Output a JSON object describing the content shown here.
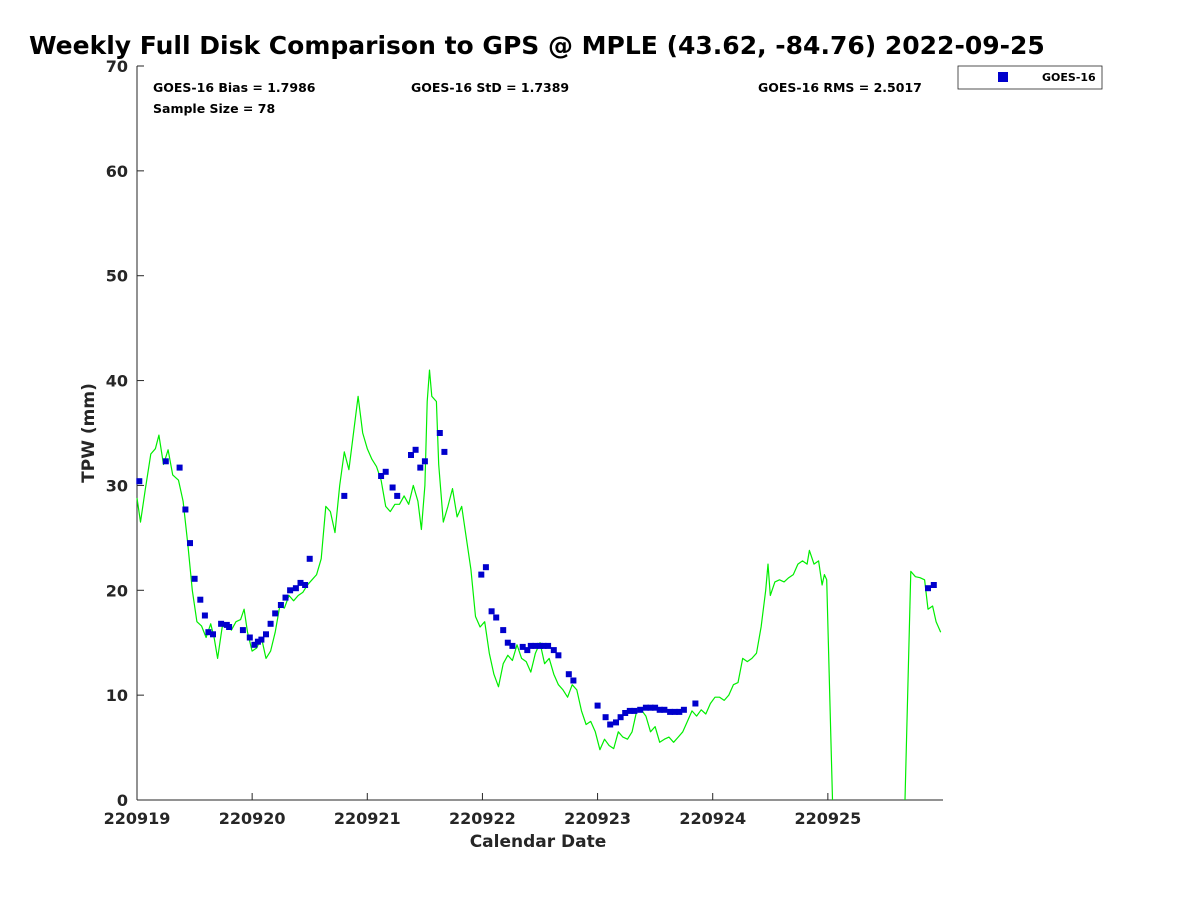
{
  "chart_data": {
    "type": "scatter",
    "title": "Weekly Full Disk Comparison to GPS @ MPLE (43.62, -84.76) 2022-09-25",
    "xlabel": "Calendar Date",
    "ylabel": "TPW (mm)",
    "xlim": [
      0,
      7
    ],
    "ylim": [
      0,
      70
    ],
    "x_unit": "days since 220919",
    "x_ticks": [
      {
        "x": 0,
        "label": "220919"
      },
      {
        "x": 1,
        "label": "220920"
      },
      {
        "x": 2,
        "label": "220921"
      },
      {
        "x": 3,
        "label": "220922"
      },
      {
        "x": 4,
        "label": "220923"
      },
      {
        "x": 5,
        "label": "220924"
      },
      {
        "x": 6,
        "label": "220925"
      }
    ],
    "y_ticks": [
      0,
      10,
      20,
      30,
      40,
      50,
      60,
      70
    ],
    "stats": {
      "bias": "GOES-16 Bias = 1.7986",
      "std": "GOES-16 StD = 1.7389",
      "rms": "GOES-16 RMS = 2.5017",
      "sample": "Sample Size = 78"
    },
    "legend": {
      "position": "top-right-outside",
      "entries": [
        "GOES-16"
      ]
    },
    "series": [
      {
        "name": "GOES-16",
        "kind": "scatter",
        "color": "#0000cc",
        "points": [
          [
            0.02,
            30.4
          ],
          [
            0.25,
            32.3
          ],
          [
            0.37,
            31.7
          ],
          [
            0.42,
            27.7
          ],
          [
            0.46,
            24.5
          ],
          [
            0.5,
            21.1
          ],
          [
            0.55,
            19.1
          ],
          [
            0.59,
            17.6
          ],
          [
            0.62,
            16.0
          ],
          [
            0.66,
            15.8
          ],
          [
            0.73,
            16.8
          ],
          [
            0.78,
            16.7
          ],
          [
            0.8,
            16.5
          ],
          [
            0.92,
            16.2
          ],
          [
            0.98,
            15.5
          ],
          [
            1.02,
            14.8
          ],
          [
            1.05,
            15.1
          ],
          [
            1.08,
            15.3
          ],
          [
            1.12,
            15.8
          ],
          [
            1.16,
            16.8
          ],
          [
            1.2,
            17.8
          ],
          [
            1.25,
            18.6
          ],
          [
            1.29,
            19.3
          ],
          [
            1.33,
            20.0
          ],
          [
            1.38,
            20.2
          ],
          [
            1.42,
            20.7
          ],
          [
            1.46,
            20.5
          ],
          [
            1.5,
            23.0
          ],
          [
            1.8,
            29.0
          ],
          [
            2.12,
            30.9
          ],
          [
            2.16,
            31.3
          ],
          [
            2.22,
            29.8
          ],
          [
            2.26,
            29.0
          ],
          [
            2.38,
            32.9
          ],
          [
            2.42,
            33.4
          ],
          [
            2.46,
            31.7
          ],
          [
            2.5,
            32.3
          ],
          [
            2.63,
            35.0
          ],
          [
            2.67,
            33.2
          ],
          [
            2.99,
            21.5
          ],
          [
            3.03,
            22.2
          ],
          [
            3.08,
            18.0
          ],
          [
            3.12,
            17.4
          ],
          [
            3.18,
            16.2
          ],
          [
            3.22,
            15.0
          ],
          [
            3.26,
            14.7
          ],
          [
            3.35,
            14.6
          ],
          [
            3.39,
            14.3
          ],
          [
            3.42,
            14.7
          ],
          [
            3.46,
            14.7
          ],
          [
            3.5,
            14.7
          ],
          [
            3.53,
            14.7
          ],
          [
            3.57,
            14.7
          ],
          [
            3.62,
            14.3
          ],
          [
            3.66,
            13.8
          ],
          [
            3.75,
            12.0
          ],
          [
            3.79,
            11.4
          ],
          [
            4.0,
            9.0
          ],
          [
            4.07,
            7.9
          ],
          [
            4.11,
            7.2
          ],
          [
            4.16,
            7.4
          ],
          [
            4.2,
            7.9
          ],
          [
            4.24,
            8.3
          ],
          [
            4.28,
            8.5
          ],
          [
            4.32,
            8.5
          ],
          [
            4.37,
            8.6
          ],
          [
            4.42,
            8.8
          ],
          [
            4.46,
            8.8
          ],
          [
            4.5,
            8.8
          ],
          [
            4.54,
            8.6
          ],
          [
            4.58,
            8.6
          ],
          [
            4.63,
            8.4
          ],
          [
            4.67,
            8.4
          ],
          [
            4.71,
            8.4
          ],
          [
            4.75,
            8.6
          ],
          [
            4.85,
            9.2
          ],
          [
            6.87,
            20.2
          ],
          [
            6.92,
            20.5
          ]
        ]
      },
      {
        "name": "",
        "kind": "line",
        "color": "#00ee00",
        "points": [
          [
            0,
            28.8
          ],
          [
            0.03,
            26.5
          ],
          [
            0.07,
            29.5
          ],
          [
            0.12,
            33.0
          ],
          [
            0.16,
            33.5
          ],
          [
            0.19,
            34.8
          ],
          [
            0.23,
            32.0
          ],
          [
            0.27,
            33.4
          ],
          [
            0.31,
            31.0
          ],
          [
            0.36,
            30.5
          ],
          [
            0.4,
            28.5
          ],
          [
            0.44,
            24.5
          ],
          [
            0.48,
            20.0
          ],
          [
            0.52,
            17.0
          ],
          [
            0.56,
            16.6
          ],
          [
            0.6,
            15.5
          ],
          [
            0.64,
            16.8
          ],
          [
            0.67,
            15.5
          ],
          [
            0.7,
            13.5
          ],
          [
            0.74,
            16.5
          ],
          [
            0.78,
            16.8
          ],
          [
            0.82,
            16.2
          ],
          [
            0.86,
            17.0
          ],
          [
            0.9,
            17.2
          ],
          [
            0.93,
            18.2
          ],
          [
            0.96,
            16.0
          ],
          [
            1.0,
            14.2
          ],
          [
            1.04,
            14.5
          ],
          [
            1.08,
            15.5
          ],
          [
            1.12,
            13.5
          ],
          [
            1.16,
            14.2
          ],
          [
            1.2,
            16.0
          ],
          [
            1.24,
            18.5
          ],
          [
            1.28,
            18.3
          ],
          [
            1.32,
            19.5
          ],
          [
            1.36,
            19.0
          ],
          [
            1.4,
            19.5
          ],
          [
            1.44,
            19.8
          ],
          [
            1.48,
            20.5
          ],
          [
            1.52,
            21.0
          ],
          [
            1.56,
            21.5
          ],
          [
            1.6,
            23.0
          ],
          [
            1.64,
            28.0
          ],
          [
            1.68,
            27.5
          ],
          [
            1.72,
            25.5
          ],
          [
            1.76,
            30.0
          ],
          [
            1.8,
            33.2
          ],
          [
            1.84,
            31.5
          ],
          [
            1.88,
            35.0
          ],
          [
            1.92,
            38.5
          ],
          [
            1.96,
            35.0
          ],
          [
            2.0,
            33.5
          ],
          [
            2.04,
            32.5
          ],
          [
            2.08,
            31.8
          ],
          [
            2.12,
            30.5
          ],
          [
            2.16,
            28.0
          ],
          [
            2.2,
            27.5
          ],
          [
            2.24,
            28.2
          ],
          [
            2.28,
            28.2
          ],
          [
            2.32,
            29.0
          ],
          [
            2.36,
            28.2
          ],
          [
            2.4,
            30.0
          ],
          [
            2.44,
            28.5
          ],
          [
            2.47,
            25.8
          ],
          [
            2.5,
            30.0
          ],
          [
            2.52,
            38.0
          ],
          [
            2.54,
            41.0
          ],
          [
            2.56,
            38.5
          ],
          [
            2.6,
            38.0
          ],
          [
            2.62,
            32.0
          ],
          [
            2.66,
            26.5
          ],
          [
            2.7,
            28.0
          ],
          [
            2.74,
            29.7
          ],
          [
            2.78,
            27.0
          ],
          [
            2.82,
            28.0
          ],
          [
            2.86,
            25.0
          ],
          [
            2.9,
            22.0
          ],
          [
            2.94,
            17.5
          ],
          [
            2.98,
            16.5
          ],
          [
            3.02,
            17.0
          ],
          [
            3.06,
            14.0
          ],
          [
            3.1,
            12.0
          ],
          [
            3.14,
            10.8
          ],
          [
            3.18,
            13.0
          ],
          [
            3.22,
            13.8
          ],
          [
            3.26,
            13.3
          ],
          [
            3.3,
            14.8
          ],
          [
            3.34,
            13.5
          ],
          [
            3.38,
            13.2
          ],
          [
            3.42,
            12.2
          ],
          [
            3.46,
            14.0
          ],
          [
            3.5,
            15.0
          ],
          [
            3.54,
            13.0
          ],
          [
            3.58,
            13.5
          ],
          [
            3.62,
            12.0
          ],
          [
            3.66,
            11.0
          ],
          [
            3.7,
            10.5
          ],
          [
            3.74,
            9.8
          ],
          [
            3.78,
            11.0
          ],
          [
            3.82,
            10.5
          ],
          [
            3.86,
            8.5
          ],
          [
            3.9,
            7.2
          ],
          [
            3.94,
            7.5
          ],
          [
            3.98,
            6.5
          ],
          [
            4.02,
            4.8
          ],
          [
            4.06,
            5.8
          ],
          [
            4.1,
            5.2
          ],
          [
            4.14,
            4.9
          ],
          [
            4.18,
            6.5
          ],
          [
            4.22,
            6.0
          ],
          [
            4.26,
            5.8
          ],
          [
            4.3,
            6.5
          ],
          [
            4.34,
            8.5
          ],
          [
            4.38,
            8.6
          ],
          [
            4.42,
            8.0
          ],
          [
            4.46,
            6.5
          ],
          [
            4.5,
            7.0
          ],
          [
            4.54,
            5.5
          ],
          [
            4.58,
            5.8
          ],
          [
            4.62,
            6.0
          ],
          [
            4.66,
            5.5
          ],
          [
            4.7,
            6.0
          ],
          [
            4.74,
            6.5
          ],
          [
            4.78,
            7.5
          ],
          [
            4.82,
            8.5
          ],
          [
            4.86,
            8.0
          ],
          [
            4.9,
            8.6
          ],
          [
            4.94,
            8.2
          ],
          [
            4.98,
            9.2
          ],
          [
            5.02,
            9.8
          ],
          [
            5.06,
            9.8
          ],
          [
            5.1,
            9.5
          ],
          [
            5.14,
            10.0
          ],
          [
            5.18,
            11.0
          ],
          [
            5.22,
            11.2
          ],
          [
            5.26,
            13.5
          ],
          [
            5.3,
            13.2
          ],
          [
            5.34,
            13.5
          ],
          [
            5.38,
            14.0
          ],
          [
            5.42,
            16.5
          ],
          [
            5.46,
            20.0
          ],
          [
            5.48,
            22.5
          ],
          [
            5.5,
            19.5
          ],
          [
            5.54,
            20.8
          ],
          [
            5.58,
            21.0
          ],
          [
            5.62,
            20.8
          ],
          [
            5.66,
            21.2
          ],
          [
            5.7,
            21.5
          ],
          [
            5.74,
            22.5
          ],
          [
            5.78,
            22.8
          ],
          [
            5.82,
            22.5
          ],
          [
            5.84,
            23.8
          ],
          [
            5.88,
            22.5
          ],
          [
            5.92,
            22.8
          ],
          [
            5.95,
            20.5
          ],
          [
            5.97,
            21.5
          ],
          [
            5.99,
            21.0
          ],
          [
            6.04,
            0
          ]
        ]
      },
      {
        "name": "",
        "kind": "line",
        "color": "#00ee00",
        "points": [
          [
            6.67,
            0
          ],
          [
            6.72,
            21.8
          ],
          [
            6.76,
            21.3
          ],
          [
            6.8,
            21.2
          ],
          [
            6.84,
            21.0
          ],
          [
            6.87,
            18.2
          ],
          [
            6.91,
            18.5
          ],
          [
            6.94,
            17.0
          ],
          [
            6.98,
            16.0
          ]
        ]
      }
    ]
  }
}
